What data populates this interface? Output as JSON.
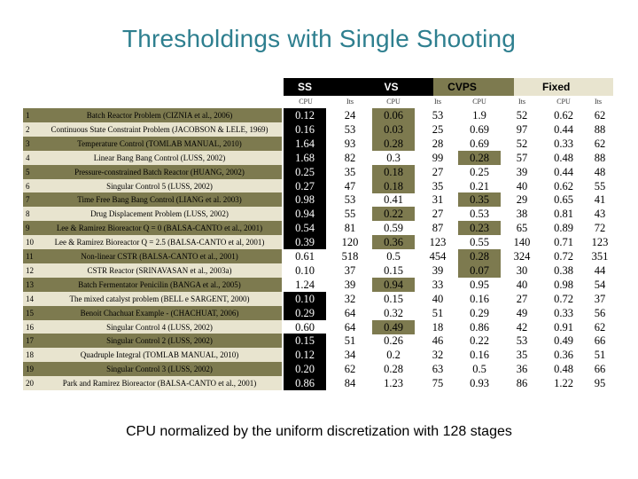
{
  "title": "Thresholdings with Single Shooting",
  "groups": {
    "ss": "SS",
    "vs": "VS",
    "cvps": "CVPS",
    "fixed": "Fixed"
  },
  "subheaders": [
    "CPU",
    "Its",
    "CPU",
    "Its",
    "CPU",
    "Its",
    "CPU",
    "Its"
  ],
  "rows": [
    {
      "num": "1",
      "name": "Batch Reactor Problem (CIZNIA et al., 2006)",
      "vals": [
        "0.12",
        "24",
        "0.06",
        "53",
        "1.9",
        "52",
        "0.62",
        "62"
      ],
      "hl": [
        "dark",
        "",
        "olive",
        "",
        "",
        "",
        "",
        ""
      ]
    },
    {
      "num": "2",
      "name": "Continuous State Constraint Problem (JACOBSON & LELE, 1969)",
      "vals": [
        "0.16",
        "53",
        "0.03",
        "25",
        "0.69",
        "97",
        "0.44",
        "88"
      ],
      "hl": [
        "dark",
        "",
        "olive",
        "",
        "",
        "",
        "",
        ""
      ]
    },
    {
      "num": "3",
      "name": "Temperature Control (TOMLAB MANUAL, 2010)",
      "vals": [
        "1.64",
        "93",
        "0.28",
        "28",
        "0.69",
        "52",
        "0.33",
        "62"
      ],
      "hl": [
        "dark",
        "",
        "olive",
        "",
        "",
        "",
        "",
        ""
      ]
    },
    {
      "num": "4",
      "name": "Linear Bang Bang Control (LUSS, 2002)",
      "vals": [
        "1.68",
        "82",
        "0.3",
        "99",
        "0.28",
        "57",
        "0.48",
        "88"
      ],
      "hl": [
        "dark",
        "",
        "",
        "",
        "olive",
        "",
        "",
        ""
      ]
    },
    {
      "num": "5",
      "name": "Pressure-constrained Batch Reactor (HUANG, 2002)",
      "vals": [
        "0.25",
        "35",
        "0.18",
        "27",
        "0.25",
        "39",
        "0.44",
        "48"
      ],
      "hl": [
        "dark",
        "",
        "olive",
        "",
        "",
        "",
        "",
        ""
      ]
    },
    {
      "num": "6",
      "name": "Singular Control 5 (LUSS, 2002)",
      "vals": [
        "0.27",
        "47",
        "0.18",
        "35",
        "0.21",
        "40",
        "0.62",
        "55"
      ],
      "hl": [
        "dark",
        "",
        "olive",
        "",
        "",
        "",
        "",
        ""
      ]
    },
    {
      "num": "7",
      "name": "Time Free Bang Bang Control (LIANG et al. 2003)",
      "vals": [
        "0.98",
        "53",
        "0.41",
        "31",
        "0.35",
        "29",
        "0.65",
        "41"
      ],
      "hl": [
        "dark",
        "",
        "",
        "",
        "olive",
        "",
        "",
        ""
      ]
    },
    {
      "num": "8",
      "name": "Drug Displacement Problem (LUSS, 2002)",
      "vals": [
        "0.94",
        "55",
        "0.22",
        "27",
        "0.53",
        "38",
        "0.81",
        "43"
      ],
      "hl": [
        "dark",
        "",
        "olive",
        "",
        "",
        "",
        "",
        ""
      ]
    },
    {
      "num": "9",
      "name": "Lee & Ramirez Bioreactor Q = 0 (BALSA-CANTO et al., 2001)",
      "vals": [
        "0.54",
        "81",
        "0.59",
        "87",
        "0.23",
        "65",
        "0.89",
        "72"
      ],
      "hl": [
        "dark",
        "",
        "",
        "",
        "olive",
        "",
        "",
        ""
      ]
    },
    {
      "num": "10",
      "name": "Lee & Ramirez Bioreactor Q = 2.5 (BALSA-CANTO et al, 2001)",
      "vals": [
        "0.39",
        "120",
        "0.36",
        "123",
        "0.55",
        "140",
        "0.71",
        "123"
      ],
      "hl": [
        "dark",
        "",
        "olive",
        "",
        "",
        "",
        "",
        ""
      ]
    },
    {
      "num": "11",
      "name": "Non-linear CSTR (BALSA-CANTO et al., 2001)",
      "vals": [
        "0.61",
        "518",
        "0.5",
        "454",
        "0.28",
        "324",
        "0.72",
        "351"
      ],
      "hl": [
        "",
        "",
        "",
        "",
        "olive",
        "",
        "",
        ""
      ]
    },
    {
      "num": "12",
      "name": "CSTR Reactor (SRINAVASAN et al., 2003a)",
      "vals": [
        "0.10",
        "37",
        "0.15",
        "39",
        "0.07",
        "30",
        "0.38",
        "44"
      ],
      "hl": [
        "",
        "",
        "",
        "",
        "olive",
        "",
        "",
        ""
      ]
    },
    {
      "num": "13",
      "name": "Batch Fermentator Penicilin (BANGA et al., 2005)",
      "vals": [
        "1.24",
        "39",
        "0.94",
        "33",
        "0.95",
        "40",
        "0.98",
        "54"
      ],
      "hl": [
        "",
        "",
        "olive",
        "",
        "",
        "",
        "",
        ""
      ]
    },
    {
      "num": "14",
      "name": "The mixed catalyst problem (BELL e SARGENT, 2000)",
      "vals": [
        "0.10",
        "32",
        "0.15",
        "40",
        "0.16",
        "27",
        "0.72",
        "37"
      ],
      "hl": [
        "dark",
        "",
        "",
        "",
        "",
        "",
        "",
        ""
      ]
    },
    {
      "num": "15",
      "name": "Benoit Chachuat Example - (CHACHUAT, 2006)",
      "vals": [
        "0.29",
        "64",
        "0.32",
        "51",
        "0.29",
        "49",
        "0.33",
        "56"
      ],
      "hl": [
        "dark",
        "",
        "",
        "",
        "",
        "",
        "",
        ""
      ]
    },
    {
      "num": "16",
      "name": "Singular Control 4 (LUSS, 2002)",
      "vals": [
        "0.60",
        "64",
        "0.49",
        "18",
        "0.86",
        "42",
        "0.91",
        "62"
      ],
      "hl": [
        "",
        "",
        "olive",
        "",
        "",
        "",
        "",
        ""
      ]
    },
    {
      "num": "17",
      "name": "Singular Control 2 (LUSS, 2002)",
      "vals": [
        "0.15",
        "51",
        "0.26",
        "46",
        "0.22",
        "53",
        "0.49",
        "66"
      ],
      "hl": [
        "dark",
        "",
        "",
        "",
        "",
        "",
        "",
        ""
      ]
    },
    {
      "num": "18",
      "name": "Quadruple Integral (TOMLAB MANUAL, 2010)",
      "vals": [
        "0.12",
        "34",
        "0.2",
        "32",
        "0.16",
        "35",
        "0.36",
        "51"
      ],
      "hl": [
        "dark",
        "",
        "",
        "",
        "",
        "",
        "",
        ""
      ]
    },
    {
      "num": "19",
      "name": "Singular Control 3 (LUSS, 2002)",
      "vals": [
        "0.20",
        "62",
        "0.28",
        "63",
        "0.5",
        "36",
        "0.48",
        "66"
      ],
      "hl": [
        "dark",
        "",
        "",
        "",
        "",
        "",
        "",
        ""
      ]
    },
    {
      "num": "20",
      "name": "Park and Ramirez Bioreactor (BALSA-CANTO et al., 2001)",
      "vals": [
        "0.86",
        "84",
        "1.23",
        "75",
        "0.93",
        "86",
        "1.22",
        "95"
      ],
      "hl": [
        "dark",
        "",
        "",
        "",
        "",
        "",
        "",
        ""
      ]
    }
  ],
  "footnote": "CPU normalized by the uniform discretization with 128 stages",
  "colors": {
    "title": "#2e7f8f",
    "olive": "#7d7a4f",
    "cream": "#e8e4cf",
    "dark": "#000000"
  }
}
